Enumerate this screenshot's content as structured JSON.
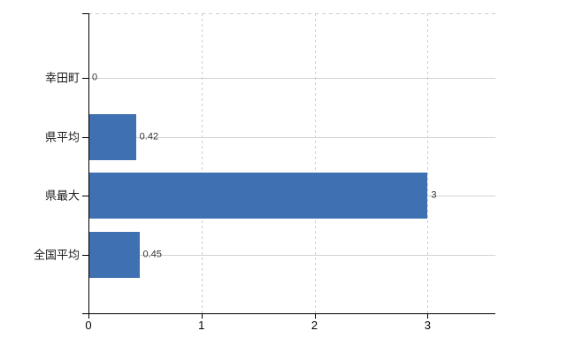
{
  "chart_data": {
    "type": "bar",
    "orientation": "horizontal",
    "title": "",
    "xlabel": "",
    "ylabel": "",
    "categories": [
      "幸田町",
      "県平均",
      "県最大",
      "全国平均"
    ],
    "values": [
      0,
      0.42,
      3,
      0.45
    ],
    "value_labels": [
      "0",
      "0.42",
      "3",
      "0.45"
    ],
    "xticks": [
      0,
      1,
      2,
      3
    ],
    "xtick_labels": [
      "0",
      "1",
      "2",
      "3"
    ],
    "xlim": [
      0,
      3.6
    ],
    "grid": true,
    "legend": "none",
    "colors": {
      "bar": "#3f70b2",
      "h_gridline": "#cdd5cd",
      "v_gridline": "#d5cbd5",
      "axis": "#000000",
      "value_text": "#333333",
      "category_text": "#1a1a1a",
      "background": "#ffffff"
    }
  }
}
